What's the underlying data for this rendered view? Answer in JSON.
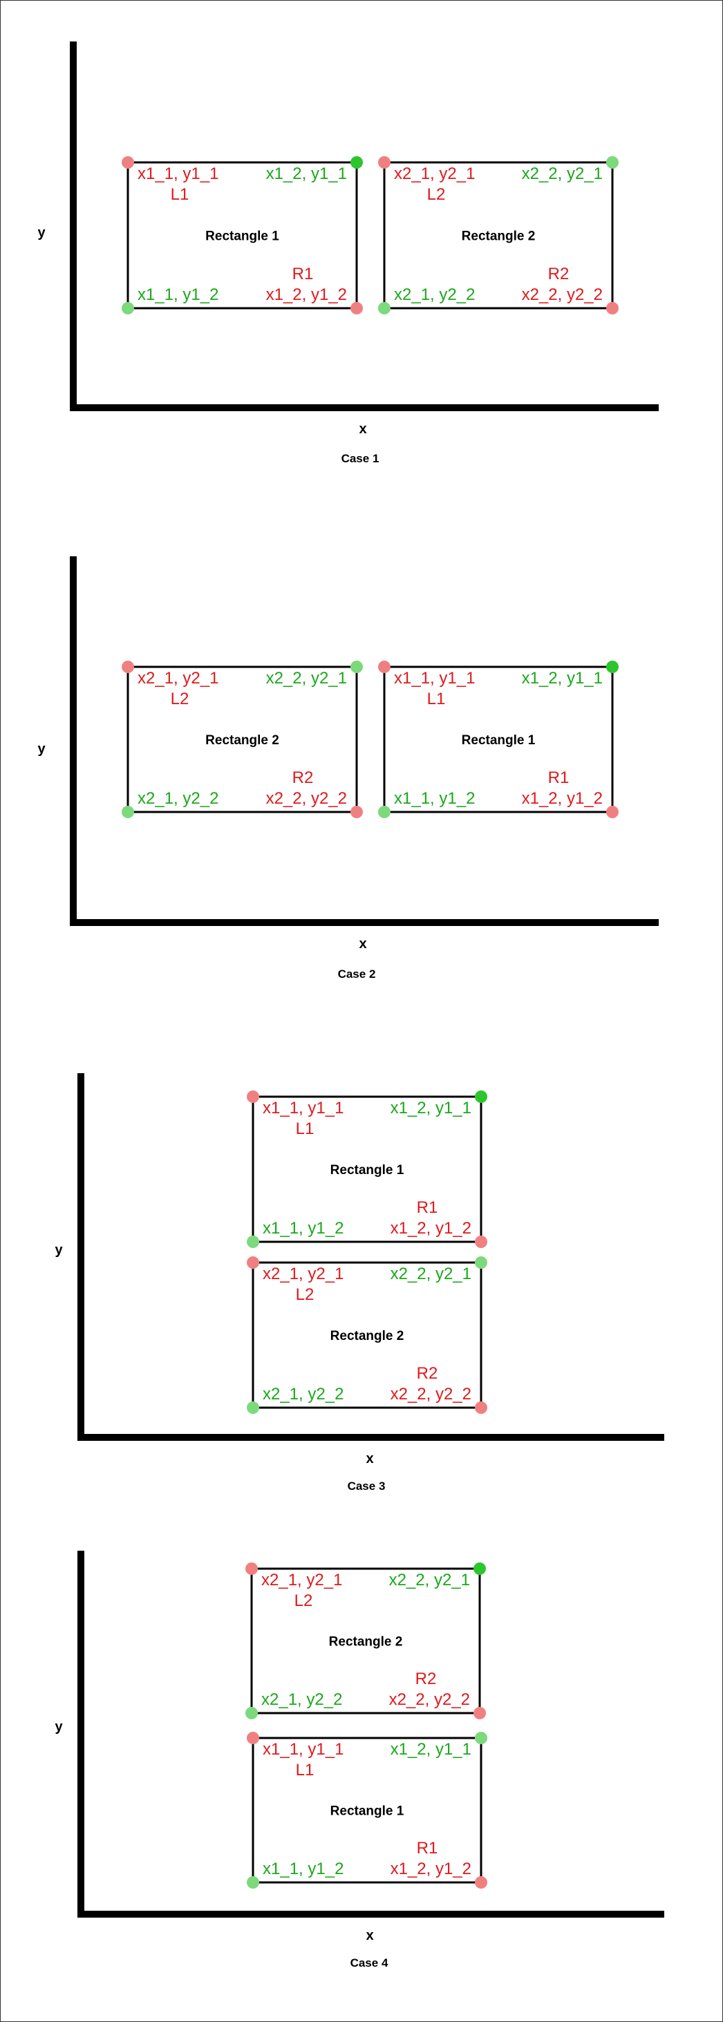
{
  "colors": {
    "red": "#e0191c",
    "green": "#1aa81a",
    "red_dot": "#f08080",
    "green_dot": "#7cd97c",
    "green_dot_strong": "#2cc62c",
    "axis": "#000000"
  },
  "axis_labels": {
    "x": "x",
    "y": "y"
  },
  "cases": [
    {
      "title": "Case 1",
      "rects": [
        {
          "title": "Rectangle 1",
          "tl": "x1_1, y1_1",
          "tl_tag": "L1",
          "tr": "x1_2, y1_1",
          "bl": "x1_1, y1_2",
          "br": "x1_2, y1_2",
          "br_tag": "R1"
        },
        {
          "title": "Rectangle 2",
          "tl": "x2_1, y2_1",
          "tl_tag": "L2",
          "tr": "x2_2, y2_1",
          "bl": "x2_1, y2_2",
          "br": "x2_2, y2_2",
          "br_tag": "R2"
        }
      ]
    },
    {
      "title": "Case 2",
      "rects": [
        {
          "title": "Rectangle 2",
          "tl": "x2_1, y2_1",
          "tl_tag": "L2",
          "tr": "x2_2, y2_1",
          "bl": "x2_1, y2_2",
          "br": "x2_2, y2_2",
          "br_tag": "R2"
        },
        {
          "title": "Rectangle 1",
          "tl": "x1_1, y1_1",
          "tl_tag": "L1",
          "tr": "x1_2, y1_1",
          "bl": "x1_1, y1_2",
          "br": "x1_2, y1_2",
          "br_tag": "R1"
        }
      ]
    },
    {
      "title": "Case 3",
      "rects": [
        {
          "title": "Rectangle 1",
          "tl": "x1_1, y1_1",
          "tl_tag": "L1",
          "tr": "x1_2, y1_1",
          "bl": "x1_1, y1_2",
          "br": "x1_2, y1_2",
          "br_tag": "R1"
        },
        {
          "title": "Rectangle 2",
          "tl": "x2_1, y2_1",
          "tl_tag": "L2",
          "tr": "x2_2, y2_1",
          "bl": "x2_1, y2_2",
          "br": "x2_2, y2_2",
          "br_tag": "R2"
        }
      ]
    },
    {
      "title": "Case 4",
      "rects": [
        {
          "title": "Rectangle 2",
          "tl": "x2_1, y2_1",
          "tl_tag": "L2",
          "tr": "x2_2, y2_1",
          "bl": "x2_1, y2_2",
          "br": "x2_2, y2_2",
          "br_tag": "R2"
        },
        {
          "title": "Rectangle 1",
          "tl": "x1_1, y1_1",
          "tl_tag": "L1",
          "tr": "x1_2, y1_1",
          "bl": "x1_1, y1_2",
          "br": "x1_2, y1_2",
          "br_tag": "R1"
        }
      ]
    }
  ]
}
